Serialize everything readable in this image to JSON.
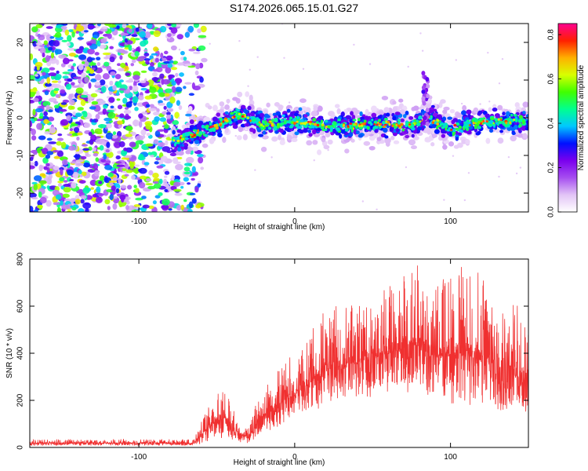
{
  "title": "S174.2026.065.15.01.G27",
  "chart_data": [
    {
      "type": "heatmap",
      "xlabel": "Height of straight line (km)",
      "ylabel": "Frequency (Hz)",
      "xlim": [
        -170,
        150
      ],
      "ylim": [
        -25,
        25
      ],
      "xticks": [
        -100,
        0,
        100
      ],
      "yticks": [
        -20,
        -10,
        0,
        10,
        20
      ],
      "colorbar": {
        "label": "Normalized spectral amplitude",
        "range": [
          0.0,
          0.85
        ],
        "ticks": [
          0.0,
          0.2,
          0.4,
          0.6,
          0.8
        ],
        "colormap": [
          "#ffffff",
          "#e2c4f6",
          "#a64ef0",
          "#7a00ee",
          "#0010ff",
          "#00c8ff",
          "#00ff90",
          "#40ff00",
          "#d8ff00",
          "#ffb000",
          "#ff2000",
          "#ff0090"
        ]
      },
      "noise_region_x": [
        -170,
        -60
      ],
      "signal_track": [
        {
          "x": -75,
          "y": -6
        },
        {
          "x": -62,
          "y": -4
        },
        {
          "x": -50,
          "y": -2
        },
        {
          "x": -35,
          "y": 1
        },
        {
          "x": -20,
          "y": -2
        },
        {
          "x": 0,
          "y": -1
        },
        {
          "x": 20,
          "y": -2
        },
        {
          "x": 40,
          "y": -2
        },
        {
          "x": 60,
          "y": -1.5
        },
        {
          "x": 75,
          "y": -2
        },
        {
          "x": 85,
          "y": 0
        },
        {
          "x": 100,
          "y": -3
        },
        {
          "x": 120,
          "y": -1
        },
        {
          "x": 150,
          "y": -1
        }
      ],
      "burst": {
        "x": 84,
        "y": 10
      }
    },
    {
      "type": "line",
      "color": "#f03030",
      "xlabel": "Height of straight line (km)",
      "ylabel": "SNR (10 * v/v)",
      "xlim": [
        -170,
        150
      ],
      "ylim": [
        0,
        800
      ],
      "xticks": [
        -100,
        0,
        100
      ],
      "yticks": [
        0,
        200,
        400,
        600,
        800
      ],
      "envelope": [
        {
          "x": -170,
          "low": 5,
          "high": 35
        },
        {
          "x": -65,
          "low": 5,
          "high": 35
        },
        {
          "x": -55,
          "low": 10,
          "high": 180
        },
        {
          "x": -45,
          "low": 20,
          "high": 270
        },
        {
          "x": -38,
          "low": 15,
          "high": 140
        },
        {
          "x": -30,
          "low": 10,
          "high": 80
        },
        {
          "x": -22,
          "low": 30,
          "high": 250
        },
        {
          "x": -10,
          "low": 60,
          "high": 350
        },
        {
          "x": 0,
          "low": 90,
          "high": 400
        },
        {
          "x": 20,
          "low": 140,
          "high": 590
        },
        {
          "x": 40,
          "low": 170,
          "high": 620
        },
        {
          "x": 60,
          "low": 180,
          "high": 700
        },
        {
          "x": 75,
          "low": 170,
          "high": 800
        },
        {
          "x": 90,
          "low": 140,
          "high": 720
        },
        {
          "x": 110,
          "low": 110,
          "high": 780
        },
        {
          "x": 130,
          "low": 90,
          "high": 700
        },
        {
          "x": 150,
          "low": 70,
          "high": 560
        }
      ]
    }
  ]
}
